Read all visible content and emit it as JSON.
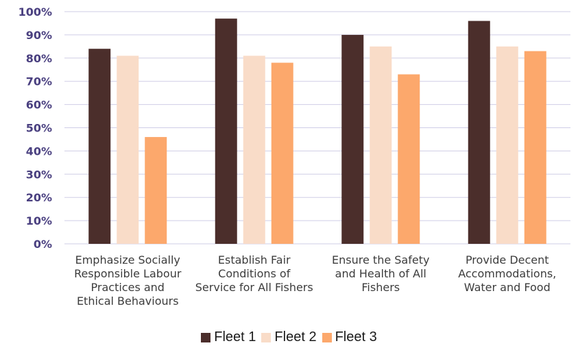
{
  "chart_data": {
    "type": "bar",
    "categories": [
      "Emphasize Socially Responsible Labour Practices and Ethical Behaviours",
      "Establish Fair Conditions of Service for All Fishers",
      "Ensure the Safety and Health of All Fishers",
      "Provide Decent Accommodations, Water and Food"
    ],
    "category_lines": [
      [
        "Emphasize Socially",
        "Responsible Labour",
        "Practices and",
        "Ethical Behaviours"
      ],
      [
        "Establish Fair",
        "Conditions of",
        "Service for All Fishers"
      ],
      [
        "Ensure the Safety",
        "and Health of All",
        "Fishers"
      ],
      [
        "Provide Decent",
        "Accommodations,",
        "Water and Food"
      ]
    ],
    "series": [
      {
        "name": "Fleet 1",
        "color": "#4b2e2b",
        "values": [
          84,
          97,
          90,
          96
        ]
      },
      {
        "name": "Fleet 2",
        "color": "#f9dcc8",
        "values": [
          81,
          81,
          85,
          85
        ]
      },
      {
        "name": "Fleet 3",
        "color": "#fca86c",
        "values": [
          46,
          78,
          73,
          83
        ]
      }
    ],
    "ylim": [
      0,
      100
    ],
    "yticks": [
      "0%",
      "10%",
      "20%",
      "30%",
      "40%",
      "50%",
      "60%",
      "70%",
      "80%",
      "90%",
      "100%"
    ],
    "grid": true,
    "legend_position": "bottom",
    "xlabel": "",
    "ylabel": ""
  }
}
